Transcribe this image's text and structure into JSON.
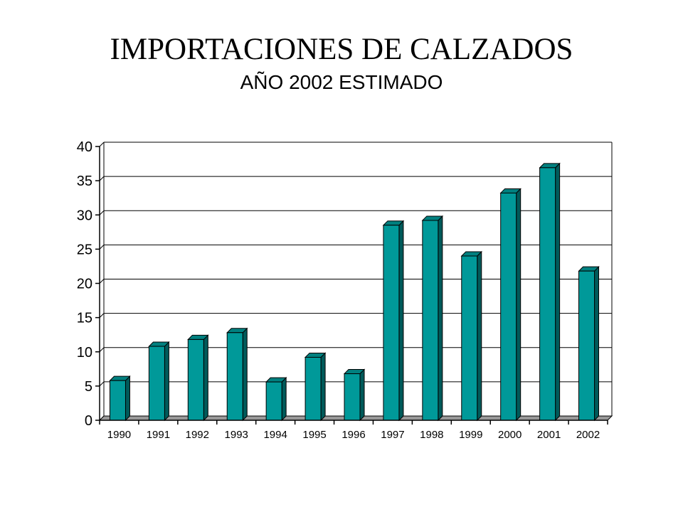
{
  "chart_data": {
    "type": "bar",
    "title": "IMPORTACIONES DE CALZADOS",
    "subtitle": "AÑO 2002 ESTIMADO",
    "categories": [
      "1990",
      "1991",
      "1992",
      "1993",
      "1994",
      "1995",
      "1996",
      "1997",
      "1998",
      "1999",
      "2000",
      "2001",
      "2002"
    ],
    "values": [
      5.8,
      10.8,
      11.8,
      12.8,
      5.6,
      9.2,
      6.8,
      28.5,
      29.2,
      24.0,
      33.2,
      36.9,
      21.8
    ],
    "ylim": [
      0,
      40
    ],
    "yticks": [
      "0",
      "5",
      "10",
      "15",
      "20",
      "25",
      "30",
      "35",
      "40"
    ],
    "grid": true,
    "legend": "none",
    "colors": {
      "bar_front": "#009999",
      "bar_side": "#005a5a",
      "bar_top": "#00807f",
      "floor": "#999999"
    }
  }
}
